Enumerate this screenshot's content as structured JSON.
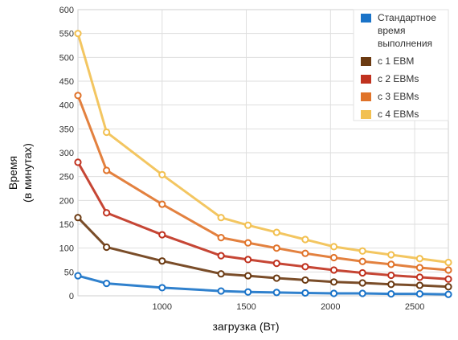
{
  "chart_data": {
    "type": "line",
    "xlabel": "загрузка (Вт)",
    "ylabel_line1": "Время",
    "ylabel_line2": "(в минутах)",
    "xlim": [
      500,
      2700
    ],
    "ylim": [
      0,
      600
    ],
    "x_ticks": [
      1000,
      1500,
      2000,
      2500
    ],
    "y_ticks": [
      0,
      50,
      100,
      150,
      200,
      250,
      300,
      350,
      400,
      450,
      500,
      550,
      600
    ],
    "grid": true,
    "legend_position": "top-right",
    "x": [
      500,
      670,
      1000,
      1350,
      1510,
      1680,
      1850,
      2020,
      2190,
      2360,
      2530,
      2700
    ],
    "series": [
      {
        "name": "Стандартное время выполнения",
        "name_lines": [
          "Стандартное",
          "время",
          "выполнения"
        ],
        "color": "#1a73c8",
        "values": [
          42,
          26,
          17,
          10,
          8,
          7,
          6,
          5,
          5,
          4,
          4,
          3
        ]
      },
      {
        "name": "c 1 EBM",
        "name_lines": [
          "c 1 EBM"
        ],
        "color": "#6b3a12",
        "values": [
          164,
          102,
          73,
          46,
          42,
          37,
          33,
          29,
          27,
          24,
          22,
          19
        ]
      },
      {
        "name": "c 2 EBMs",
        "name_lines": [
          "c 2 EBMs"
        ],
        "color": "#c0321f",
        "values": [
          280,
          174,
          128,
          84,
          76,
          68,
          61,
          54,
          48,
          43,
          39,
          35
        ]
      },
      {
        "name": "c 3 EBMs",
        "name_lines": [
          "c 3 EBMs"
        ],
        "color": "#e0732a",
        "values": [
          420,
          263,
          192,
          122,
          111,
          100,
          89,
          80,
          72,
          66,
          59,
          54
        ]
      },
      {
        "name": "c 4 EBMs",
        "name_lines": [
          "c 4 EBMs"
        ],
        "color": "#f2c050",
        "values": [
          550,
          343,
          254,
          164,
          148,
          133,
          118,
          103,
          94,
          86,
          78,
          70
        ]
      }
    ]
  }
}
